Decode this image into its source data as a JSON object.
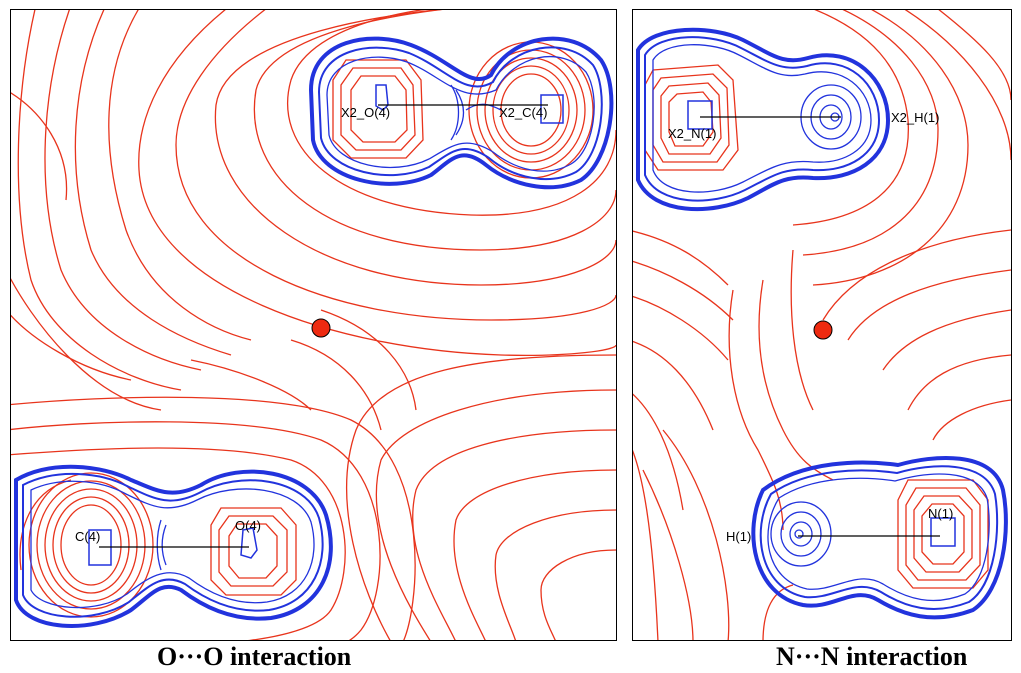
{
  "panels": [
    {
      "caption": "O···O interaction",
      "labels": {
        "a1": "X2_O(4)",
        "a2": "X2_C(4)",
        "b1": "C(4)",
        "b2": "O(4)"
      }
    },
    {
      "caption": "N···N interaction",
      "labels": {
        "a1": "X2_N(1)",
        "a2": "X2_H(1)",
        "b1": "H(1)",
        "b2": "N(1)"
      }
    }
  ],
  "colors": {
    "negative_contour": "#e8341c",
    "positive_contour": "#2233dd",
    "critical_point": "#ee2a10"
  }
}
